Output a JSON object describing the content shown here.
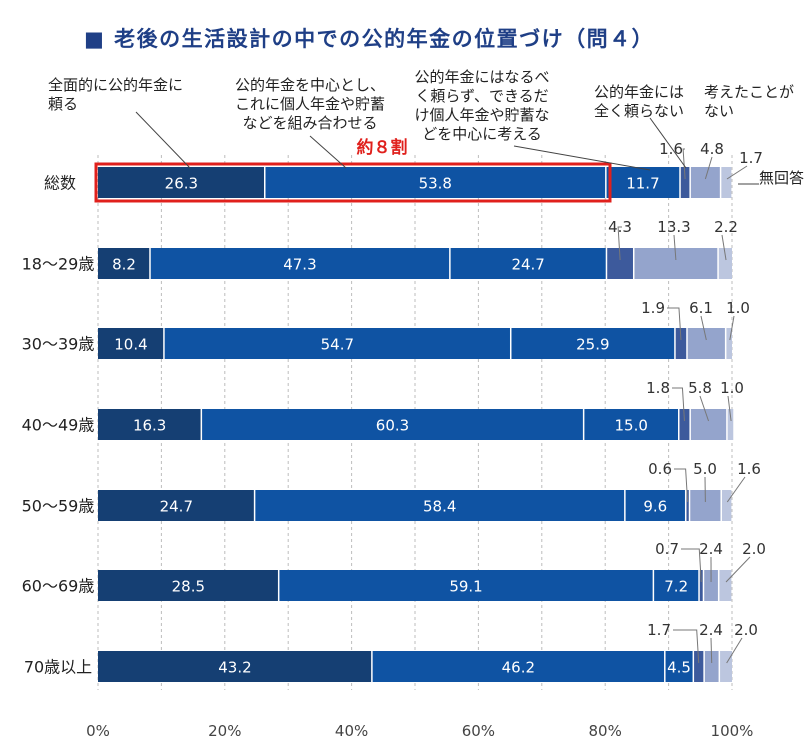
{
  "title": "■ 老後の生活設計の中での公的年金の位置づけ（問４）",
  "highlight": "約８割",
  "colors": {
    "title": "#1f3f86",
    "highlight": "#e0201c",
    "seg_values": [
      "#153f73",
      "#0f4f9e",
      "#0c57a6",
      "#1d3f8c",
      "#5a72ad",
      "#94a4cc",
      "#b9c3de"
    ],
    "text": "#222222",
    "small": "#333333",
    "grid": "#bdbdbd"
  },
  "chart_data": {
    "type": "bar",
    "orientation": "horizontal",
    "stacked": true,
    "title": "■ 老後の生活設計の中での公的年金の位置づけ（問４）",
    "categories": [
      "総数",
      "18～29歳",
      "30～39歳",
      "40～49歳",
      "50～59歳",
      "60～69歳",
      "70歳以上"
    ],
    "series": [
      {
        "name": "全面的に公的年金に頼る",
        "values": [
          26.3,
          8.2,
          10.4,
          16.3,
          24.7,
          28.5,
          43.2
        ]
      },
      {
        "name": "公的年金を中心とし、これに個人年金や貯蓄などを組み合わせる",
        "values": [
          53.8,
          47.3,
          54.7,
          60.3,
          58.4,
          59.1,
          46.2
        ]
      },
      {
        "name": "公的年金にはなるべく頼らず、できるだけ個人年金や貯蓄などを中心に考える",
        "values": [
          11.7,
          24.7,
          25.9,
          15.0,
          9.6,
          7.2,
          4.5
        ]
      },
      {
        "name": "公的年金には全く頼らない",
        "values": [
          1.6,
          4.3,
          1.9,
          1.8,
          0.6,
          0.7,
          1.7
        ]
      },
      {
        "name": "考えたことがない",
        "values": [
          4.8,
          13.3,
          6.1,
          5.8,
          5.0,
          2.4,
          2.4
        ]
      },
      {
        "name": "無回答",
        "values": [
          1.7,
          2.2,
          1.0,
          1.0,
          1.6,
          2.0,
          2.0
        ]
      }
    ],
    "series_labels": [
      [
        "全面的に公的年金に",
        "頼る"
      ],
      [
        "公的年金を中心とし、",
        "これに個人年金や貯蓄",
        "などを組み合わせる"
      ],
      [
        "公的年金にはなるべ",
        "く頼らず、できるだ",
        "け個人年金や貯蓄な",
        "どを中心に考える"
      ],
      [
        "公的年金には",
        "全く頼らない"
      ],
      [
        "考えたことが",
        "ない"
      ],
      [
        "無回答"
      ]
    ],
    "xlim": [
      0,
      100
    ],
    "xticks": [
      "0%",
      "20%",
      "40%",
      "60%",
      "80%",
      "100%"
    ],
    "grid": true
  }
}
